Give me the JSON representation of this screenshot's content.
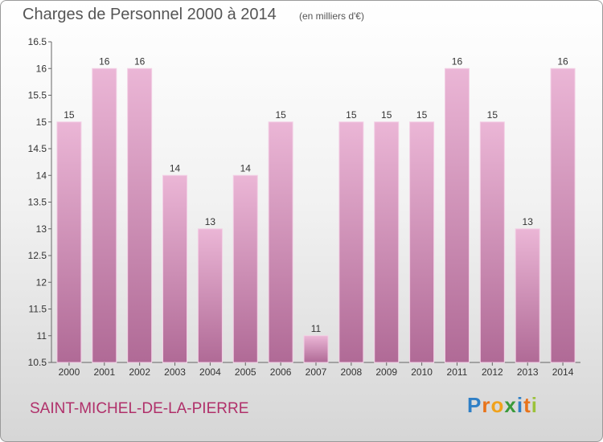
{
  "header": {
    "title": "Charges de Personnel 2000 à 2014",
    "unit": "(en milliers d'€)"
  },
  "footer": {
    "town": "SAINT-MICHEL-DE-LA-PIERRE",
    "logo_letters": [
      "P",
      "r",
      "o",
      "x",
      "i",
      "t",
      "i"
    ]
  },
  "colors": {
    "bar_light": "#ebb6d6",
    "bar_dark": "#b06a96",
    "bar_edge": "#f3cfe5",
    "town": "#b0306a",
    "logo": [
      "#2f7fc6",
      "#e8731a",
      "#f0a21c",
      "#3a9a3a",
      "#2f7fc6",
      "#e8731a",
      "#9bc23a"
    ]
  },
  "chart_data": {
    "type": "bar",
    "title": "Charges de Personnel 2000 à 2014",
    "categories": [
      "2000",
      "2001",
      "2002",
      "2003",
      "2004",
      "2005",
      "2006",
      "2007",
      "2008",
      "2009",
      "2010",
      "2011",
      "2012",
      "2013",
      "2014"
    ],
    "values": [
      15,
      16,
      16,
      14,
      13,
      14,
      15,
      11,
      15,
      15,
      15,
      16,
      15,
      13,
      16
    ],
    "data_labels": [
      "15",
      "16",
      "16",
      "14",
      "13",
      "14",
      "15",
      "11",
      "15",
      "15",
      "15",
      "16",
      "15",
      "13",
      "16"
    ],
    "yticks": [
      "10.5",
      "11",
      "11.5",
      "12",
      "12.5",
      "13",
      "13.5",
      "14",
      "14.5",
      "15",
      "15.5",
      "16",
      "16.5"
    ],
    "ylim": [
      10.5,
      16.5
    ],
    "grid": false,
    "legend": "none"
  }
}
